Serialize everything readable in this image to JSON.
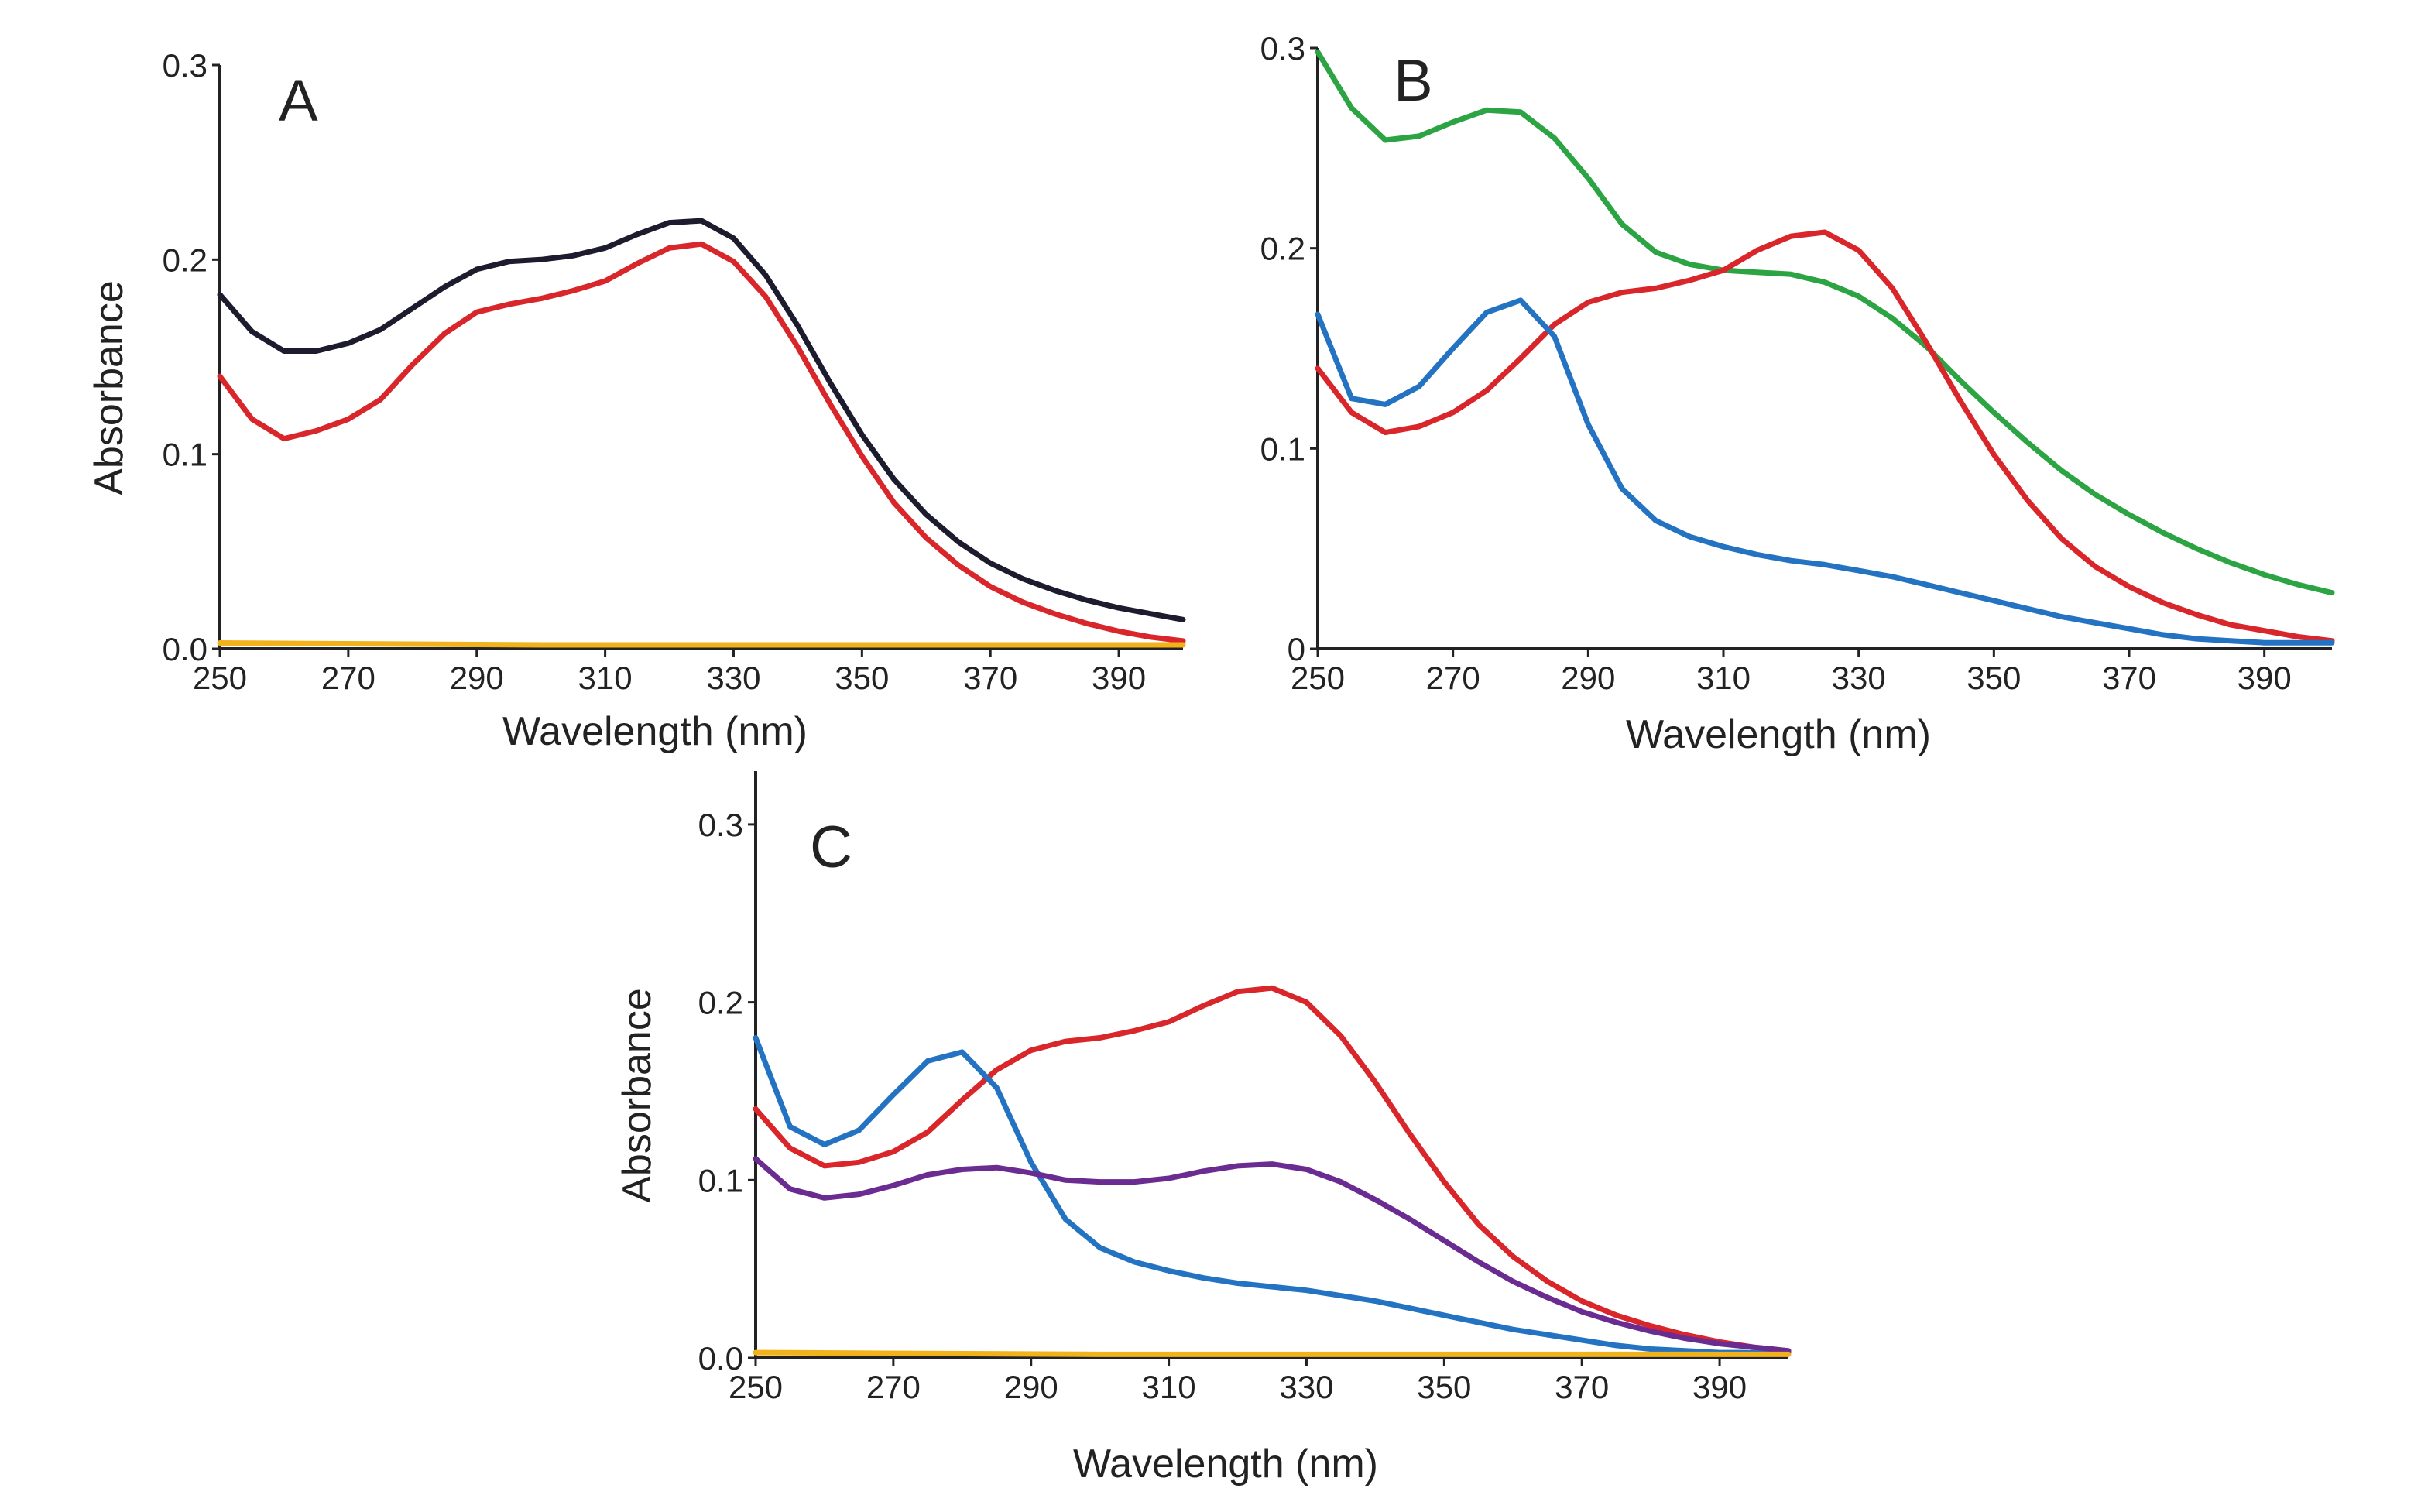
{
  "figure": {
    "panel_count": 3
  },
  "chart_data": [
    {
      "type": "line",
      "panel_label": "A",
      "xlabel": "Wavelength (nm)",
      "ylabel": "Absorbance",
      "xlim": [
        250,
        400
      ],
      "ylim": [
        0,
        0.3
      ],
      "xticks": [
        250,
        270,
        290,
        310,
        330,
        350,
        370,
        390
      ],
      "yticks": [
        0.0,
        0.1,
        0.2,
        0.3
      ],
      "ytick_labels": [
        "0.0",
        "0.1",
        "0.2",
        "0.3"
      ],
      "grid": false,
      "legend": "none",
      "series": [
        {
          "name": "black",
          "color": "#1c1c2e",
          "x": [
            250,
            255,
            260,
            265,
            270,
            275,
            280,
            285,
            290,
            295,
            300,
            305,
            310,
            315,
            320,
            325,
            330,
            335,
            340,
            345,
            350,
            355,
            360,
            365,
            370,
            375,
            380,
            385,
            390,
            395,
            400
          ],
          "y": [
            0.182,
            0.163,
            0.153,
            0.153,
            0.157,
            0.164,
            0.175,
            0.186,
            0.195,
            0.199,
            0.2,
            0.202,
            0.206,
            0.213,
            0.219,
            0.22,
            0.211,
            0.192,
            0.166,
            0.137,
            0.11,
            0.087,
            0.069,
            0.055,
            0.044,
            0.036,
            0.03,
            0.025,
            0.021,
            0.018,
            0.015
          ]
        },
        {
          "name": "red",
          "color": "#d9262a",
          "x": [
            250,
            255,
            260,
            265,
            270,
            275,
            280,
            285,
            290,
            295,
            300,
            305,
            310,
            315,
            320,
            325,
            330,
            335,
            340,
            345,
            350,
            355,
            360,
            365,
            370,
            375,
            380,
            385,
            390,
            395,
            400
          ],
          "y": [
            0.14,
            0.118,
            0.108,
            0.112,
            0.118,
            0.128,
            0.146,
            0.162,
            0.173,
            0.177,
            0.18,
            0.184,
            0.189,
            0.198,
            0.206,
            0.208,
            0.199,
            0.181,
            0.155,
            0.126,
            0.099,
            0.075,
            0.057,
            0.043,
            0.032,
            0.024,
            0.018,
            0.013,
            0.009,
            0.006,
            0.004
          ]
        },
        {
          "name": "yellow",
          "color": "#f2b21b",
          "x": [
            250,
            300,
            350,
            400
          ],
          "y": [
            0.003,
            0.002,
            0.002,
            0.002
          ]
        }
      ]
    },
    {
      "type": "line",
      "panel_label": "B",
      "xlabel": "Wavelength (nm)",
      "ylabel": "",
      "xlim": [
        250,
        400
      ],
      "ylim": [
        0,
        0.3
      ],
      "xticks": [
        250,
        270,
        290,
        310,
        330,
        350,
        370,
        390
      ],
      "yticks": [
        0,
        0.1,
        0.2,
        0.3
      ],
      "ytick_labels": [
        "0",
        "0.1",
        "0.2",
        "0.3"
      ],
      "grid": false,
      "legend": "none",
      "series": [
        {
          "name": "green",
          "color": "#2ca443",
          "x": [
            250,
            255,
            260,
            265,
            270,
            275,
            280,
            285,
            290,
            295,
            300,
            305,
            310,
            315,
            320,
            325,
            330,
            335,
            340,
            345,
            350,
            355,
            360,
            365,
            370,
            375,
            380,
            385,
            390,
            395,
            400
          ],
          "y": [
            0.298,
            0.27,
            0.254,
            0.256,
            0.263,
            0.269,
            0.268,
            0.255,
            0.235,
            0.212,
            0.198,
            0.192,
            0.189,
            0.188,
            0.187,
            0.183,
            0.176,
            0.165,
            0.151,
            0.134,
            0.118,
            0.103,
            0.089,
            0.077,
            0.067,
            0.058,
            0.05,
            0.043,
            0.037,
            0.032,
            0.028
          ]
        },
        {
          "name": "red",
          "color": "#d9262a",
          "x": [
            250,
            255,
            260,
            265,
            270,
            275,
            280,
            285,
            290,
            295,
            300,
            305,
            310,
            315,
            320,
            325,
            330,
            335,
            340,
            345,
            350,
            355,
            360,
            365,
            370,
            375,
            380,
            385,
            390,
            395,
            400
          ],
          "y": [
            0.14,
            0.118,
            0.108,
            0.111,
            0.118,
            0.129,
            0.145,
            0.162,
            0.173,
            0.178,
            0.18,
            0.184,
            0.189,
            0.199,
            0.206,
            0.208,
            0.199,
            0.18,
            0.153,
            0.124,
            0.097,
            0.074,
            0.055,
            0.041,
            0.031,
            0.023,
            0.017,
            0.012,
            0.009,
            0.006,
            0.004
          ]
        },
        {
          "name": "blue",
          "color": "#2473c2",
          "x": [
            250,
            255,
            260,
            265,
            270,
            275,
            280,
            285,
            290,
            295,
            300,
            305,
            310,
            315,
            320,
            325,
            330,
            335,
            340,
            345,
            350,
            355,
            360,
            365,
            370,
            375,
            380,
            385,
            390,
            395,
            400
          ],
          "y": [
            0.167,
            0.125,
            0.122,
            0.131,
            0.15,
            0.168,
            0.174,
            0.156,
            0.112,
            0.08,
            0.064,
            0.056,
            0.051,
            0.047,
            0.044,
            0.042,
            0.039,
            0.036,
            0.032,
            0.028,
            0.024,
            0.02,
            0.016,
            0.013,
            0.01,
            0.007,
            0.005,
            0.004,
            0.003,
            0.003,
            0.003
          ]
        }
      ]
    },
    {
      "type": "line",
      "panel_label": "C",
      "xlabel": "Wavelength (nm)",
      "ylabel": "Absorbance",
      "xlim": [
        250,
        400
      ],
      "ylim": [
        0,
        0.33
      ],
      "xticks": [
        250,
        270,
        290,
        310,
        330,
        350,
        370,
        390
      ],
      "yticks": [
        0.0,
        0.1,
        0.2,
        0.3
      ],
      "ytick_labels": [
        "0.0",
        "0.1",
        "0.2",
        "0.3"
      ],
      "grid": false,
      "legend": "none",
      "series": [
        {
          "name": "red",
          "color": "#d9262a",
          "x": [
            250,
            255,
            260,
            265,
            270,
            275,
            280,
            285,
            290,
            295,
            300,
            305,
            310,
            315,
            320,
            325,
            330,
            335,
            340,
            345,
            350,
            355,
            360,
            365,
            370,
            375,
            380,
            385,
            390,
            395,
            400
          ],
          "y": [
            0.14,
            0.118,
            0.108,
            0.11,
            0.116,
            0.127,
            0.145,
            0.162,
            0.173,
            0.178,
            0.18,
            0.184,
            0.189,
            0.198,
            0.206,
            0.208,
            0.2,
            0.181,
            0.155,
            0.126,
            0.099,
            0.075,
            0.057,
            0.043,
            0.032,
            0.024,
            0.018,
            0.013,
            0.009,
            0.006,
            0.004
          ]
        },
        {
          "name": "blue",
          "color": "#2473c2",
          "x": [
            250,
            255,
            260,
            265,
            270,
            275,
            280,
            285,
            290,
            295,
            300,
            305,
            310,
            315,
            320,
            325,
            330,
            335,
            340,
            345,
            350,
            355,
            360,
            365,
            370,
            375,
            380,
            385,
            390,
            395,
            400
          ],
          "y": [
            0.18,
            0.13,
            0.12,
            0.128,
            0.148,
            0.167,
            0.172,
            0.152,
            0.11,
            0.078,
            0.062,
            0.054,
            0.049,
            0.045,
            0.042,
            0.04,
            0.038,
            0.035,
            0.032,
            0.028,
            0.024,
            0.02,
            0.016,
            0.013,
            0.01,
            0.007,
            0.005,
            0.004,
            0.003,
            0.003,
            0.003
          ]
        },
        {
          "name": "purple",
          "color": "#6a2c91",
          "x": [
            250,
            255,
            260,
            265,
            270,
            275,
            280,
            285,
            290,
            295,
            300,
            305,
            310,
            315,
            320,
            325,
            330,
            335,
            340,
            345,
            350,
            355,
            360,
            365,
            370,
            375,
            380,
            385,
            390,
            395,
            400
          ],
          "y": [
            0.112,
            0.095,
            0.09,
            0.092,
            0.097,
            0.103,
            0.106,
            0.107,
            0.104,
            0.1,
            0.099,
            0.099,
            0.101,
            0.105,
            0.108,
            0.109,
            0.106,
            0.099,
            0.089,
            0.078,
            0.066,
            0.054,
            0.043,
            0.034,
            0.026,
            0.02,
            0.015,
            0.011,
            0.008,
            0.006,
            0.004
          ]
        },
        {
          "name": "yellow",
          "color": "#f2b21b",
          "x": [
            250,
            300,
            350,
            400
          ],
          "y": [
            0.003,
            0.002,
            0.002,
            0.002
          ]
        }
      ]
    }
  ]
}
